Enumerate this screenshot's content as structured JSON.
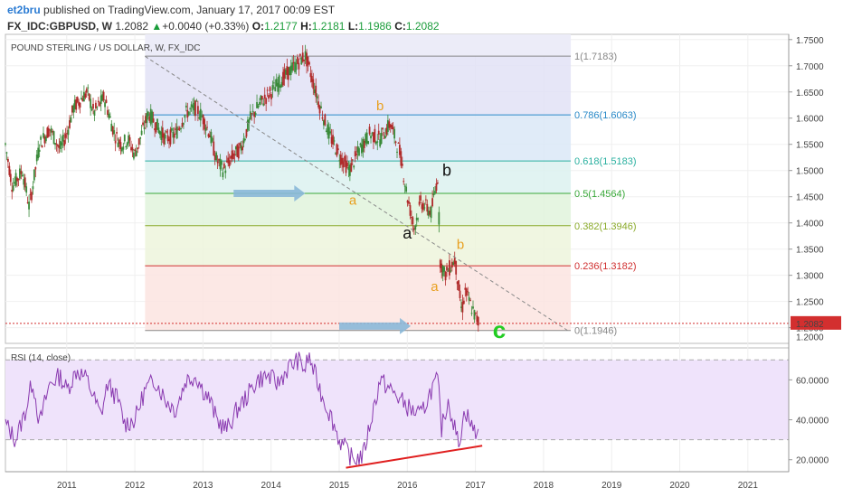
{
  "header": {
    "author": "et2bru",
    "published": "published on TradingView.com, January 17, 2017 00:09 EST",
    "symbol": "FX_IDC:GBPUSD, W",
    "last": "1.2082",
    "change": "+0.0040 (+0.33%)",
    "open_label": "O:",
    "open": "1.2177",
    "high_label": "H:",
    "high": "1.2181",
    "low_label": "L:",
    "low": "1.1986",
    "close_label": "C:",
    "close": "1.2082",
    "up_arrow": "▲"
  },
  "colors": {
    "candle_up": "#3a8a3a",
    "candle_down": "#b02a2a",
    "rsi_line": "#8a3ab0",
    "rsi_band": "#efe3fb",
    "divergence": "#e02020",
    "arrow": "#8ab8d8",
    "wave_orange": "#e8a020",
    "wave_c": "#22cc22",
    "price_tag": "#d32f2f"
  },
  "chart_data": [
    {
      "type": "line",
      "title": "POUND STERLING / US DOLLAR, W, FX_IDC",
      "ylim": [
        1.17,
        1.76
      ],
      "xlim": [
        2010.1,
        2021.6
      ],
      "y_ticks": [
        "1.7500",
        "1.7000",
        "1.6500",
        "1.6000",
        "1.5500",
        "1.5000",
        "1.4500",
        "1.4000",
        "1.3500",
        "1.3000",
        "1.2500",
        "1.2000"
      ],
      "x_ticks": [
        "2011",
        "2012",
        "2013",
        "2014",
        "2015",
        "2016",
        "2017",
        "2018",
        "2019",
        "2020",
        "2021"
      ],
      "series": [
        {
          "values_x": [
            2010.1,
            2010.2,
            2010.35,
            2010.45,
            2010.6,
            2010.75,
            2010.9,
            2011.0,
            2011.1,
            2011.3,
            2011.4,
            2011.55,
            2011.7,
            2011.8,
            2011.9,
            2012.0,
            2012.1,
            2012.2,
            2012.3,
            2012.45,
            2012.6,
            2012.75,
            2012.9,
            2013.0,
            2013.1,
            2013.2,
            2013.3,
            2013.45,
            2013.55,
            2013.7,
            2013.85,
            2014.0,
            2014.2,
            2014.35,
            2014.5,
            2014.55,
            2014.7,
            2014.85,
            2015.0,
            2015.15,
            2015.3,
            2015.45,
            2015.6,
            2015.75,
            2015.9,
            2016.0,
            2016.1,
            2016.2,
            2016.35,
            2016.45,
            2016.48,
            2016.55,
            2016.7,
            2016.8,
            2016.85,
            2017.0,
            2017.05
          ],
          "values_y": [
            1.55,
            1.47,
            1.5,
            1.43,
            1.55,
            1.58,
            1.54,
            1.57,
            1.62,
            1.65,
            1.61,
            1.64,
            1.57,
            1.55,
            1.56,
            1.53,
            1.57,
            1.61,
            1.59,
            1.56,
            1.57,
            1.61,
            1.62,
            1.6,
            1.57,
            1.52,
            1.5,
            1.53,
            1.54,
            1.6,
            1.63,
            1.65,
            1.68,
            1.7,
            1.72,
            1.7,
            1.63,
            1.57,
            1.53,
            1.5,
            1.54,
            1.57,
            1.56,
            1.59,
            1.53,
            1.45,
            1.39,
            1.44,
            1.42,
            1.49,
            1.33,
            1.3,
            1.33,
            1.23,
            1.27,
            1.22,
            1.21
          ]
        }
      ],
      "last_price": "1.2082",
      "partial_tick": "1.2000",
      "fibonacci": [
        {
          "label": "1(1.7183)",
          "value": 1.7183,
          "color": "#888888"
        },
        {
          "label": "0.786(1.6063)",
          "value": 1.6063,
          "color": "#2a8ac8"
        },
        {
          "label": "0.618(1.5183)",
          "value": 1.5183,
          "color": "#2ab0a0"
        },
        {
          "label": "0.5(1.4564)",
          "value": 1.4564,
          "color": "#3aa83a"
        },
        {
          "label": "0.382(1.3946)",
          "value": 1.3946,
          "color": "#8aaa2a"
        },
        {
          "label": "0.236(1.3182)",
          "value": 1.3182,
          "color": "#d03030"
        },
        {
          "label": "0(1.1946)",
          "value": 1.1946,
          "color": "#888888"
        }
      ],
      "wave_labels": [
        {
          "text": "b",
          "x": 2015.6,
          "y": 1.615,
          "color": "#e8a020"
        },
        {
          "text": "a",
          "x": 2015.2,
          "y": 1.435,
          "color": "#e8a020"
        },
        {
          "text": "b",
          "x": 2016.58,
          "y": 1.49,
          "color": "#111111"
        },
        {
          "text": "a",
          "x": 2016.0,
          "y": 1.37,
          "color": "#111111"
        },
        {
          "text": "b",
          "x": 2016.78,
          "y": 1.35,
          "color": "#e8a020"
        },
        {
          "text": "a",
          "x": 2016.4,
          "y": 1.27,
          "color": "#e8a020"
        },
        {
          "text": "c",
          "x": 2017.35,
          "y": 1.18,
          "color": "#22cc22"
        }
      ]
    },
    {
      "type": "line",
      "title": "RSI (14, close)",
      "ylim": [
        14,
        76
      ],
      "y_ticks": [
        "60.0000",
        "40.0000",
        "20.0000"
      ],
      "bands": [
        70,
        30
      ],
      "series": [
        {
          "values_x": [
            2010.1,
            2010.25,
            2010.4,
            2010.5,
            2010.6,
            2010.75,
            2010.9,
            2011.0,
            2011.15,
            2011.3,
            2011.5,
            2011.6,
            2011.75,
            2011.85,
            2012.0,
            2012.15,
            2012.3,
            2012.45,
            2012.6,
            2012.75,
            2012.9,
            2013.0,
            2013.1,
            2013.2,
            2013.35,
            2013.5,
            2013.65,
            2013.8,
            2013.95,
            2014.1,
            2014.25,
            2014.4,
            2014.5,
            2014.55,
            2014.65,
            2014.75,
            2014.9,
            2015.0,
            2015.1,
            2015.2,
            2015.35,
            2015.5,
            2015.6,
            2015.75,
            2015.9,
            2016.05,
            2016.2,
            2016.35,
            2016.45,
            2016.5,
            2016.6,
            2016.75,
            2016.85,
            2016.95,
            2017.05
          ],
          "values_y": [
            38,
            30,
            45,
            60,
            38,
            58,
            62,
            55,
            65,
            60,
            42,
            58,
            50,
            38,
            40,
            55,
            60,
            50,
            45,
            60,
            62,
            55,
            50,
            40,
            35,
            45,
            52,
            60,
            62,
            58,
            66,
            70,
            65,
            72,
            62,
            52,
            40,
            30,
            25,
            20,
            22,
            45,
            60,
            55,
            50,
            45,
            42,
            55,
            60,
            35,
            50,
            28,
            45,
            36,
            33
          ]
        }
      ],
      "divergence": {
        "from": [
          2015.1,
          16
        ],
        "to": [
          2017.1,
          27
        ]
      }
    }
  ]
}
